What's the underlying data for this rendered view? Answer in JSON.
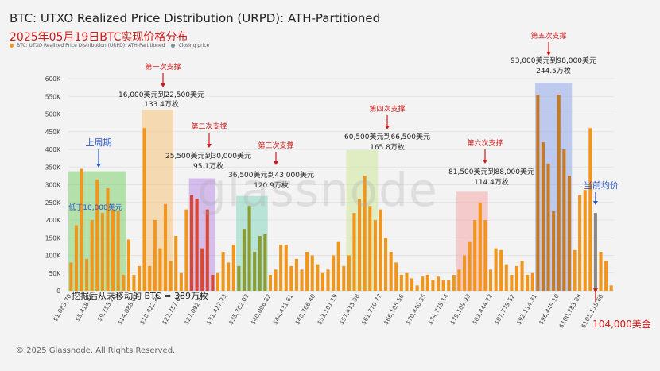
{
  "header": {
    "title": "BTC: UTXO Realized Price Distribution (URPD): ATH-Partitioned",
    "subtitle": "2025年05月19日BTC实现价格分布",
    "legend": [
      {
        "label": "BTC: UTXO Realized Price Distribution (URPD): ATH-Partitioned",
        "color": "#f0961e"
      },
      {
        "label": "Closing price",
        "color": "#888888"
      }
    ]
  },
  "watermark": "glassnode",
  "footer": {
    "copyright": "© 2025 Glassnode. All Rights Reserved."
  },
  "colors": {
    "bar": "#f0961e",
    "bar_zone2": "#d9472f",
    "bar_zone3": "#8c9c30",
    "bar_zone5": "#c87a22",
    "closing": "#888888",
    "annotation_red": "#d01a1a",
    "annotation_blue": "#2a56c6"
  },
  "chart_data": {
    "type": "bar",
    "title": "BTC: UTXO Realized Price Distribution (URPD): ATH-Partitioned",
    "ylim": [
      0,
      600000
    ],
    "yticks": [
      "0",
      "50K",
      "100K",
      "150K",
      "200K",
      "250K",
      "300K",
      "350K",
      "400K",
      "450K",
      "500K",
      "550K",
      "600K"
    ],
    "xtick_labels": [
      "$1,083.70",
      "$5,418.45",
      "$9,753.20",
      "$14,088.02",
      "$18,422.80",
      "$22,757.63",
      "$27,092.44",
      "$31,427.23",
      "$35,762.02",
      "$40,096.82",
      "$44,431.61",
      "$48,766.40",
      "$53,101.19",
      "$57,435.98",
      "$61,770.77",
      "$66,105.56",
      "$70,440.35",
      "$74,775.14",
      "$79,109.93",
      "$83,444.72",
      "$87,779.52",
      "$92,114.31",
      "$96,449.10",
      "$100,783.89",
      "$105,118.68"
    ],
    "values": [
      80000,
      185000,
      345000,
      90000,
      200000,
      315000,
      220000,
      290000,
      230000,
      225000,
      45000,
      145000,
      45000,
      70000,
      460000,
      70000,
      200000,
      120000,
      245000,
      85000,
      155000,
      50000,
      230000,
      270000,
      260000,
      120000,
      230000,
      45000,
      50000,
      110000,
      80000,
      130000,
      70000,
      175000,
      240000,
      110000,
      155000,
      160000,
      45000,
      60000,
      130000,
      130000,
      70000,
      90000,
      60000,
      110000,
      100000,
      75000,
      50000,
      60000,
      100000,
      140000,
      70000,
      100000,
      220000,
      260000,
      325000,
      240000,
      200000,
      230000,
      150000,
      110000,
      80000,
      45000,
      50000,
      35000,
      15000,
      40000,
      45000,
      30000,
      40000,
      30000,
      30000,
      45000,
      60000,
      100000,
      140000,
      200000,
      250000,
      200000,
      60000,
      120000,
      115000,
      75000,
      45000,
      70000,
      85000,
      45000,
      50000,
      555000,
      420000,
      360000,
      225000,
      555000,
      400000,
      325000,
      115000,
      270000,
      285000,
      460000,
      220000,
      110000,
      85000,
      15000
    ],
    "closing_bar_index": 100,
    "closing_price_label": "当前均价",
    "closing_price_note": "104,000美金",
    "support_zones": [
      {
        "name": "上周期",
        "range": "低于10,000美元",
        "color": "#7fd26f"
      },
      {
        "name": "第一次支撑",
        "range": "16,000美元到22,500美元",
        "amount": "133.4万枚",
        "color": "#f5c27a"
      },
      {
        "name": "第二次支撑",
        "range": "25,500美元到30,000美元",
        "amount": "95.1万枚",
        "color": "#b98ee8"
      },
      {
        "name": "第三次支撑",
        "range": "36,500美元到43,000美元",
        "amount": "120.9万枚",
        "color": "#86d7c0"
      },
      {
        "name": "第四次支撑",
        "range": "60,500美元到66,500美元",
        "amount": "165.8万枚",
        "color": "#cfe79a"
      },
      {
        "name": "第五次支撑",
        "range": "93,000美元到98,000美元",
        "amount": "244.5万枚",
        "color": "#8fa7e8"
      },
      {
        "name": "第六次支撑",
        "range": "81,500美元到88,000美元",
        "amount": "114.4万枚",
        "color": "#f4a7a7"
      }
    ],
    "note": "挖掘后从未移动的 BTC = 389万枚"
  }
}
